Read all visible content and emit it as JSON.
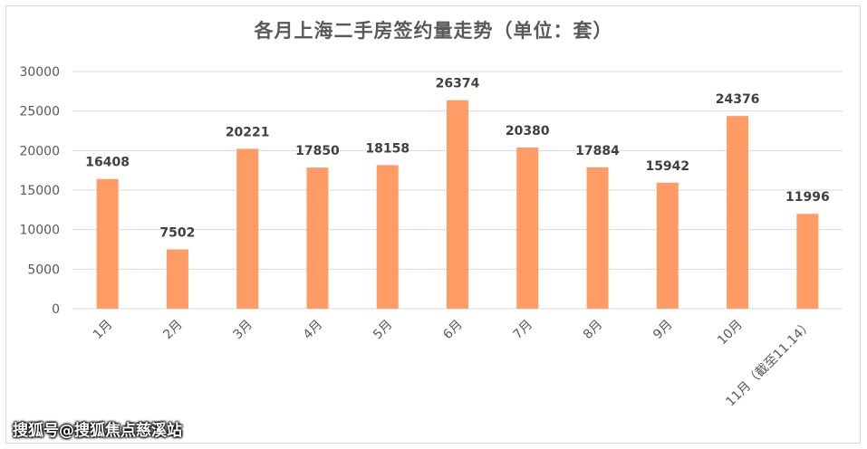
{
  "chart_data": {
    "type": "bar",
    "title": "各月上海二手房签约量走势（单位：套）",
    "categories": [
      "1月",
      "2月",
      "3月",
      "4月",
      "5月",
      "6月",
      "7月",
      "8月",
      "9月",
      "10月",
      "11月（截至11.14）"
    ],
    "values": [
      16408,
      7502,
      20221,
      17850,
      18158,
      26374,
      20380,
      17884,
      15942,
      24376,
      11996
    ],
    "ylim": [
      0,
      30000
    ],
    "yticks": [
      0,
      5000,
      10000,
      15000,
      20000,
      25000,
      30000
    ],
    "grid": true,
    "legend": "none",
    "bar_color": "#ff9c66",
    "xlabel": "",
    "ylabel": ""
  },
  "watermark": "搜狐号@搜狐焦点慈溪站"
}
